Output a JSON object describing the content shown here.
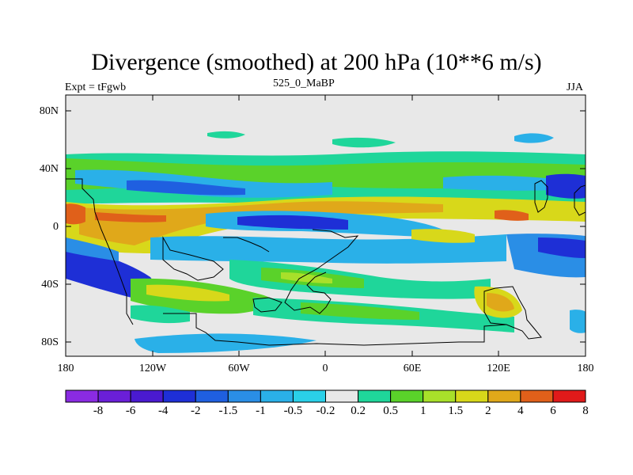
{
  "title": "Divergence (smoothed) at 200 hPa (10**6 m/s)",
  "left_label": "Expt = tFgwb",
  "center_label": "525_0_MaBP",
  "right_label": "JJA",
  "axes": {
    "y_ticks": [
      "80N",
      "40N",
      "0",
      "40S",
      "80S"
    ],
    "x_ticks": [
      "180",
      "120W",
      "60W",
      "0",
      "60E",
      "120E",
      "180"
    ]
  },
  "colorbar": {
    "labels": [
      "-8",
      "-6",
      "-4",
      "-2",
      "-1.5",
      "-1",
      "-0.5",
      "-0.2",
      "0.2",
      "0.5",
      "1",
      "1.5",
      "2",
      "4",
      "6",
      "8"
    ],
    "colors": [
      "#8a2be2",
      "#6a1fd8",
      "#4a1ad0",
      "#1e2fd6",
      "#1f5fe0",
      "#2a8ee6",
      "#2ab0e8",
      "#2ad0e8",
      "#e8e8e8",
      "#1fd69a",
      "#5ad22a",
      "#a8e02a",
      "#d8d81a",
      "#e0a81a",
      "#e0601a",
      "#e01a1a"
    ]
  },
  "colors": {
    "background": "#e8e8e8",
    "neutral": "#e8e8e8"
  }
}
